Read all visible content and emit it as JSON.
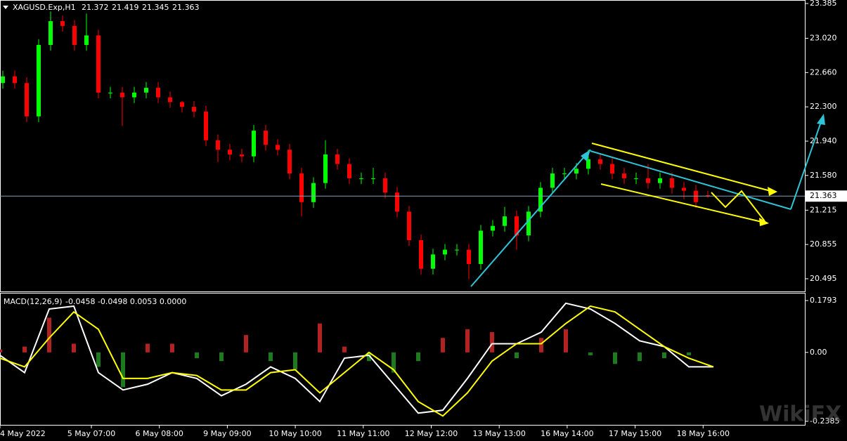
{
  "chart_data": [
    {
      "type": "candlestick",
      "symbol": "XAGUSD.Exp,H1",
      "up_color": "#00ff00",
      "down_color": "#ff0000",
      "open": [
        22.55,
        22.62,
        22.55,
        22.2,
        22.95,
        23.2,
        23.15,
        22.95,
        23.05,
        22.45,
        22.45,
        22.4,
        22.45,
        22.5,
        22.4,
        22.35,
        22.3,
        22.25,
        21.95,
        21.85,
        21.8,
        21.78,
        22.05,
        21.9,
        21.85,
        21.6,
        21.3,
        21.5,
        21.8,
        21.7,
        21.55,
        21.55,
        21.55,
        21.4,
        21.2,
        20.9,
        20.6,
        20.75,
        20.8,
        20.8,
        20.65,
        21.0,
        21.05,
        21.15,
        20.95,
        21.2,
        21.45,
        21.6,
        21.6,
        21.65,
        21.75,
        21.7,
        21.6,
        21.55,
        21.55,
        21.5,
        21.55,
        21.45,
        21.42,
        21.372
      ],
      "high": [
        22.68,
        22.68,
        22.61,
        23.01,
        23.3,
        23.26,
        23.21,
        23.28,
        23.11,
        22.51,
        22.51,
        22.51,
        22.56,
        22.56,
        22.46,
        22.36,
        22.36,
        22.31,
        22.01,
        21.91,
        21.86,
        22.11,
        22.11,
        21.96,
        21.91,
        21.66,
        21.56,
        21.95,
        21.86,
        21.76,
        21.61,
        21.66,
        21.61,
        21.46,
        21.26,
        20.96,
        20.81,
        20.86,
        20.86,
        20.86,
        21.06,
        21.11,
        21.25,
        21.21,
        21.26,
        21.51,
        21.66,
        21.66,
        21.71,
        21.85,
        21.81,
        21.76,
        21.66,
        21.61,
        21.7,
        21.61,
        21.61,
        21.51,
        21.48,
        21.419
      ],
      "low": [
        22.49,
        22.49,
        22.14,
        22.14,
        22.89,
        23.09,
        22.89,
        22.89,
        22.39,
        22.39,
        22.1,
        22.34,
        22.39,
        22.34,
        22.29,
        22.24,
        22.19,
        21.89,
        21.72,
        21.74,
        21.72,
        21.72,
        21.84,
        21.79,
        21.54,
        21.15,
        21.24,
        21.44,
        21.64,
        21.49,
        21.49,
        21.49,
        21.34,
        21.14,
        20.84,
        20.54,
        20.54,
        20.69,
        20.74,
        20.49,
        20.59,
        20.94,
        20.99,
        20.8,
        20.89,
        21.14,
        21.39,
        21.54,
        21.54,
        21.59,
        21.64,
        21.54,
        21.49,
        21.49,
        21.44,
        21.44,
        21.39,
        21.33,
        21.24,
        21.345
      ],
      "close": [
        22.62,
        22.55,
        22.2,
        22.95,
        23.2,
        23.15,
        22.95,
        23.05,
        22.45,
        22.45,
        22.4,
        22.45,
        22.5,
        22.4,
        22.35,
        22.3,
        22.25,
        21.95,
        21.85,
        21.8,
        21.78,
        22.05,
        21.9,
        21.85,
        21.6,
        21.3,
        21.5,
        21.8,
        21.7,
        21.55,
        21.55,
        21.55,
        21.4,
        21.2,
        20.9,
        20.6,
        20.75,
        20.8,
        20.8,
        20.65,
        21.0,
        21.05,
        21.15,
        20.95,
        21.2,
        21.45,
        21.6,
        21.6,
        21.65,
        21.75,
        21.7,
        21.6,
        21.55,
        21.55,
        21.5,
        21.55,
        21.45,
        21.42,
        21.3,
        21.363
      ],
      "ylim": [
        20.362,
        23.422
      ],
      "yticks": [
        23.385,
        {
          "value": 23.02,
          "label": "23.020"
        },
        {
          "value": 22.66,
          "label": "22.660"
        },
        {
          "value": 22.3,
          "label": "22.300"
        },
        {
          "value": 21.94,
          "label": "21.940"
        },
        {
          "value": 21.58,
          "label": "21.580"
        },
        21.215,
        20.855,
        20.495
      ],
      "categories": [
        "4 May 2022",
        "5 May 07:00",
        "6 May 08:00",
        "9 May 09:00",
        "10 May 10:00",
        "11 May 11:00",
        "12 May 12:00",
        "13 May 13:00",
        "16 May 14:00",
        "17 May 15:00",
        "18 May 16:00"
      ]
    },
    {
      "type": "macd",
      "title": "MACD(12,26,9)",
      "readout": "-0.0458 -0.0498 0.0053 0.0000",
      "series": [
        {
          "name": "Histogram",
          "kind": "bar",
          "values": [
            0.01,
            0.02,
            0.12,
            0.03,
            -0.05,
            -0.12,
            0.03,
            0.03,
            -0.02,
            -0.03,
            0.06,
            -0.03,
            -0.06,
            0.1,
            0.02,
            -0.03,
            -0.07,
            -0.03,
            0.05,
            0.08,
            0.07,
            -0.02,
            0.05,
            0.08,
            -0.01,
            -0.04,
            -0.03,
            -0.02,
            -0.01,
            0.0
          ]
        },
        {
          "name": "MACD",
          "kind": "line",
          "color": "#ffffff",
          "values": [
            -0.01,
            -0.07,
            0.15,
            0.16,
            -0.07,
            -0.13,
            -0.11,
            -0.07,
            -0.09,
            -0.15,
            -0.11,
            -0.05,
            -0.09,
            -0.17,
            -0.02,
            -0.01,
            -0.11,
            -0.21,
            -0.2,
            -0.09,
            0.03,
            0.03,
            0.07,
            0.17,
            0.15,
            0.1,
            0.04,
            0.02,
            -0.05,
            -0.05
          ]
        },
        {
          "name": "Signal",
          "kind": "line",
          "color": "#ffff00",
          "values": [
            -0.02,
            -0.05,
            0.05,
            0.14,
            0.08,
            -0.09,
            -0.09,
            -0.07,
            -0.08,
            -0.13,
            -0.13,
            -0.07,
            -0.06,
            -0.14,
            -0.07,
            0.0,
            -0.06,
            -0.17,
            -0.22,
            -0.14,
            -0.03,
            0.03,
            0.03,
            0.1,
            0.16,
            0.14,
            0.08,
            0.02,
            -0.02,
            -0.05
          ]
        }
      ],
      "ylim": [
        -0.2506,
        0.2036
      ],
      "yticks": [
        0.1793,
        {
          "value": 0,
          "label": "0.00"
        },
        -0.2385
      ]
    }
  ],
  "watermark": "WikiFX"
}
